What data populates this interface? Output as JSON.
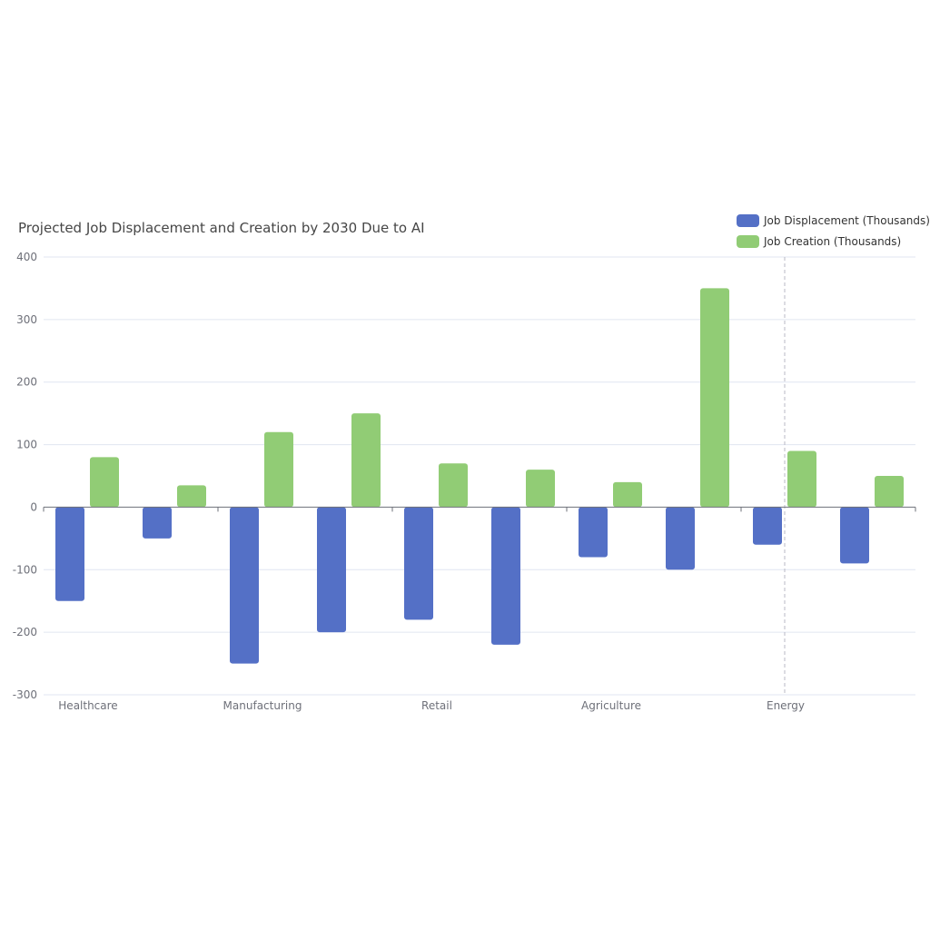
{
  "chart_data": {
    "type": "bar",
    "title": "Projected Job Displacement and Creation by 2030 Due to AI",
    "x_tick_labels": [
      "Healthcare",
      "Manufacturing",
      "Retail",
      "Agriculture",
      "Energy"
    ],
    "y_ticks": [
      400,
      300,
      200,
      100,
      0,
      -100,
      -200,
      -300
    ],
    "ylim": [
      -300,
      400
    ],
    "grid": true,
    "legend_position": "top-right",
    "bar_groups": 10,
    "series": [
      {
        "name": "Job Displacement (Thousands)",
        "color": "#5470c6",
        "values": [
          -150,
          -50,
          -250,
          -200,
          -180,
          -220,
          -80,
          -100,
          -60,
          -90
        ]
      },
      {
        "name": "Job Creation (Thousands)",
        "color": "#91cc75",
        "values": [
          80,
          35,
          120,
          150,
          70,
          60,
          40,
          350,
          90,
          50
        ]
      }
    ]
  }
}
